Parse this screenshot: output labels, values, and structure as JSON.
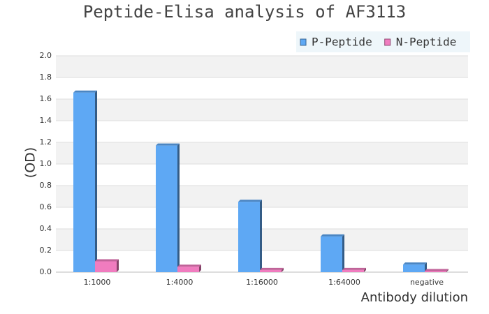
{
  "chart_data": {
    "type": "bar",
    "title": "Peptide-Elisa analysis of AF3113",
    "y_label": "(OD)",
    "x_label": "Antibody dilution",
    "categories": [
      "1:1000",
      "1:4000",
      "1:16000",
      "1:64000",
      "negative"
    ],
    "series": [
      {
        "name": "P-Peptide",
        "color": "#5ea8f4",
        "values": [
          1.66,
          1.17,
          0.65,
          0.33,
          0.07
        ]
      },
      {
        "name": "N-Peptide",
        "color": "#f07cbf",
        "values": [
          0.1,
          0.05,
          0.02,
          0.02,
          0.01
        ]
      }
    ],
    "ylim": [
      0,
      2
    ],
    "yticks": [
      {
        "value": 0,
        "label": "0.0"
      },
      0.2,
      0.4,
      0.6,
      0.8,
      {
        "value": 1,
        "label": "1.0"
      },
      1.2,
      1.4,
      1.6,
      1.8,
      {
        "value": 2,
        "label": "2.0"
      }
    ],
    "grid": true,
    "legend": "top-right"
  }
}
